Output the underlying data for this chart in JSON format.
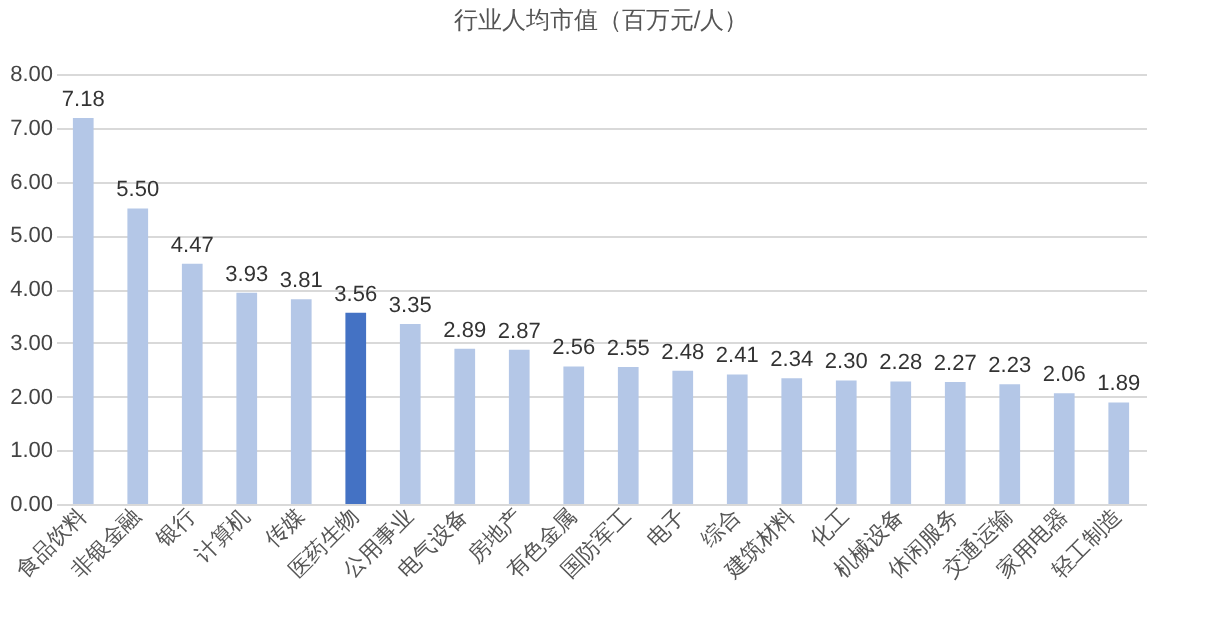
{
  "chart_data": {
    "type": "bar",
    "title": "行业人均市值（百万元/人）",
    "categories": [
      "食品饮料",
      "非银金融",
      "银行",
      "计算机",
      "传媒",
      "医药生物",
      "公用事业",
      "电气设备",
      "房地产",
      "有色金属",
      "国防军工",
      "电子",
      "综合",
      "建筑材料",
      "化工",
      "机械设备",
      "休闲服务",
      "交通运输",
      "家用电器",
      "轻工制造"
    ],
    "values": [
      7.18,
      5.5,
      4.47,
      3.93,
      3.81,
      3.56,
      3.35,
      2.89,
      2.87,
      2.56,
      2.55,
      2.48,
      2.41,
      2.34,
      2.3,
      2.28,
      2.27,
      2.23,
      2.06,
      1.89
    ],
    "value_labels": [
      "7.18",
      "5.50",
      "4.47",
      "3.93",
      "3.81",
      "3.56",
      "3.35",
      "2.89",
      "2.87",
      "2.56",
      "2.55",
      "2.48",
      "2.41",
      "2.34",
      "2.30",
      "2.28",
      "2.27",
      "2.23",
      "2.06",
      "1.89"
    ],
    "colors": [
      "#b4c7e7",
      "#b4c7e7",
      "#b4c7e7",
      "#b4c7e7",
      "#b4c7e7",
      "#4472c4",
      "#b4c7e7",
      "#b4c7e7",
      "#b4c7e7",
      "#b4c7e7",
      "#b4c7e7",
      "#b4c7e7",
      "#b4c7e7",
      "#b4c7e7",
      "#b4c7e7",
      "#b4c7e7",
      "#b4c7e7",
      "#b4c7e7",
      "#b4c7e7",
      "#b4c7e7"
    ],
    "ylim": [
      0,
      8
    ],
    "yticks": [
      {
        "value": 0,
        "label": "0.00"
      },
      {
        "value": 1,
        "label": "1.00"
      },
      {
        "value": 2,
        "label": "2.00"
      },
      {
        "value": 3,
        "label": "3.00"
      },
      {
        "value": 4,
        "label": "4.00"
      },
      {
        "value": 5,
        "label": "5.00"
      },
      {
        "value": 6,
        "label": "6.00"
      },
      {
        "value": 7,
        "label": "7.00"
      },
      {
        "value": 8,
        "label": "8.00"
      }
    ],
    "grid": "y"
  }
}
